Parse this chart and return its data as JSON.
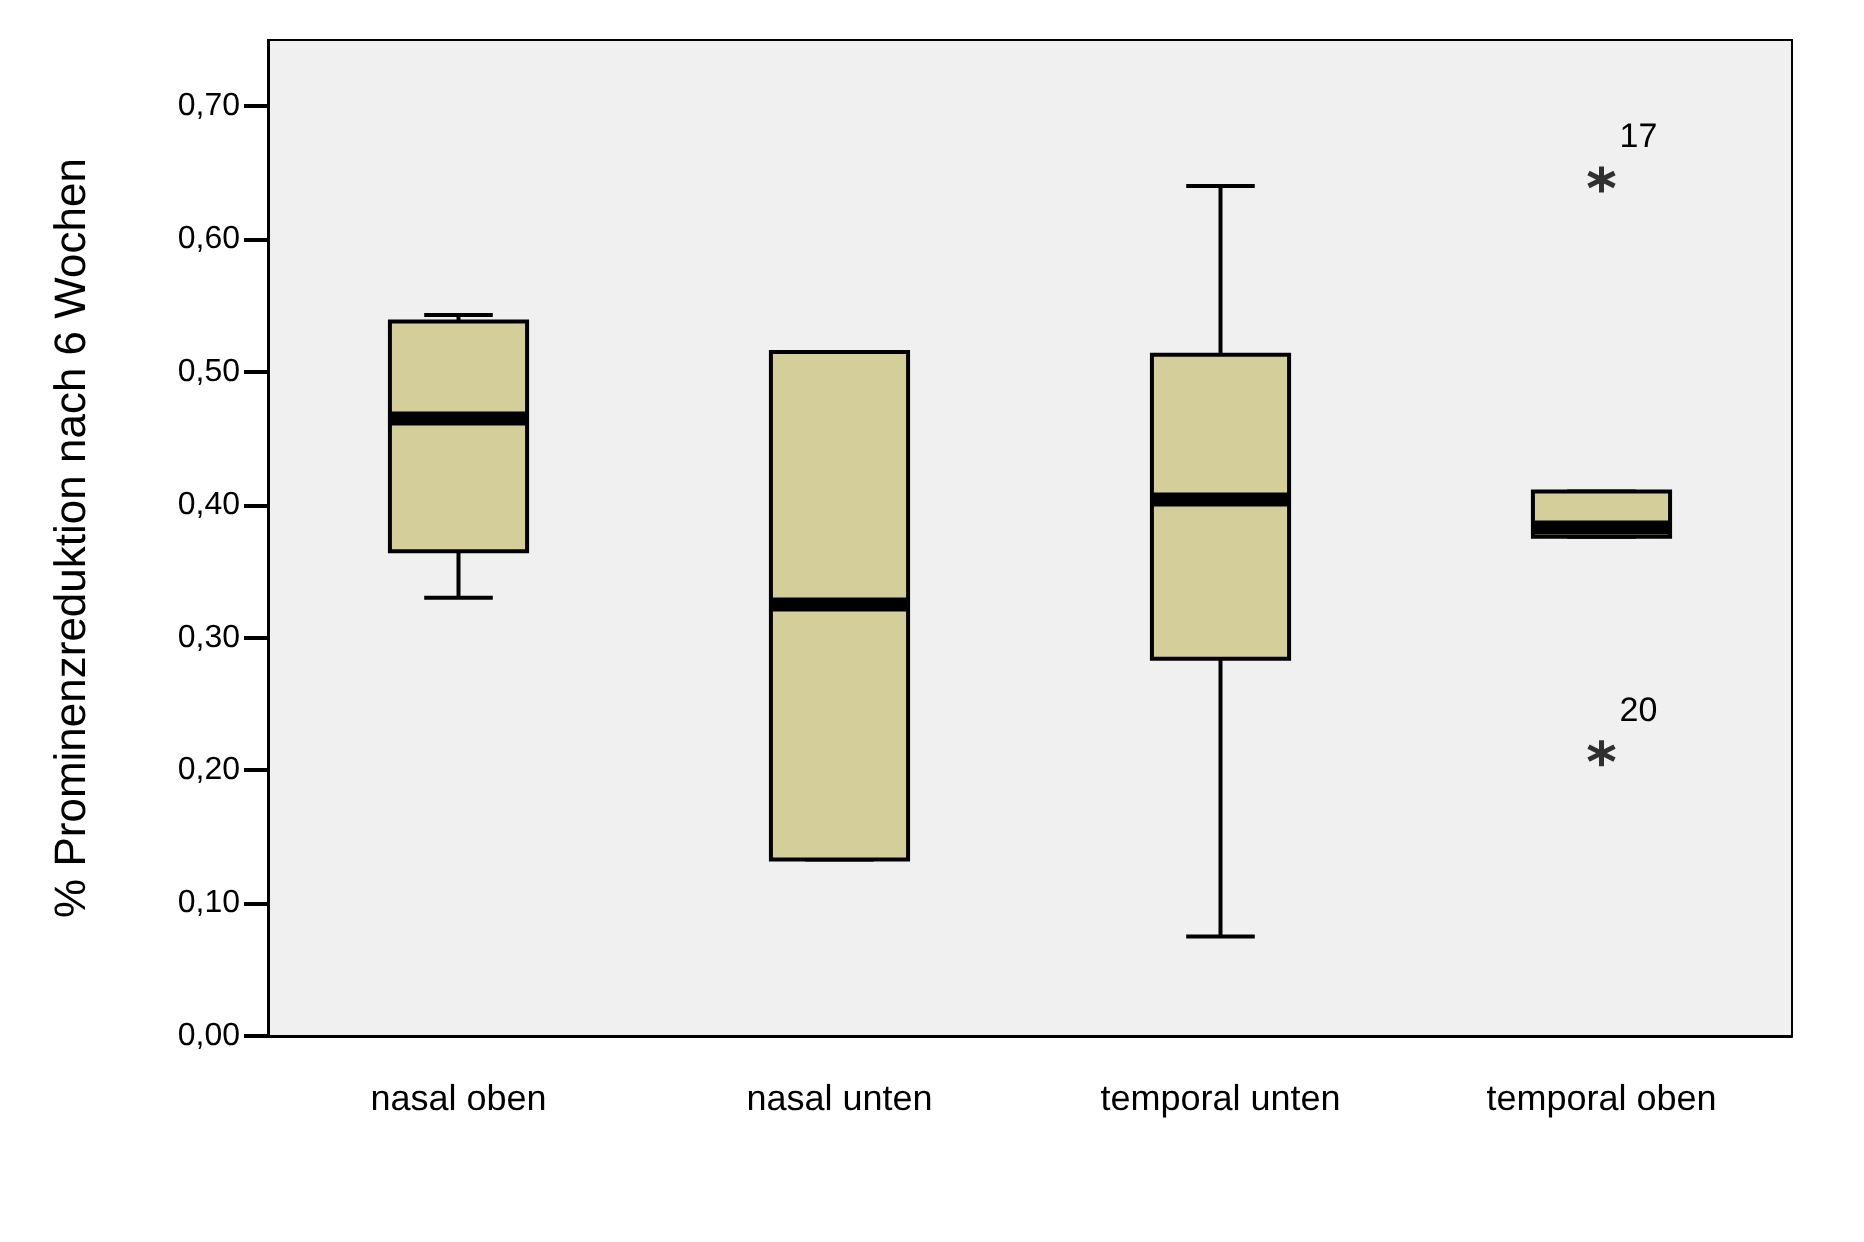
{
  "chart_data": {
    "type": "box",
    "ylabel": "% Prominenzreduktion nach 6 Wochen",
    "categories": [
      "nasal oben",
      "nasal unten",
      "temporal unten",
      "temporal oben"
    ],
    "color": "#d3ce9a",
    "boxes": [
      {
        "low": 0.33,
        "q1": 0.365,
        "median": 0.465,
        "q3": 0.538,
        "high": 0.543
      },
      {
        "low": 0.133,
        "q1": 0.133,
        "median": 0.325,
        "q3": 0.515,
        "high": 0.515
      },
      {
        "low": 0.075,
        "q1": 0.284,
        "median": 0.404,
        "q3": 0.513,
        "high": 0.64
      },
      {
        "low": 0.376,
        "q1": 0.376,
        "median": 0.383,
        "q3": 0.41,
        "high": 0.41,
        "outliers": [
          0.645,
          0.213
        ]
      }
    ],
    "ylim": [
      0,
      0.75
    ],
    "yticks": [
      {
        "value": 0,
        "label": "0,00"
      },
      {
        "value": 0.1,
        "label": "0,10"
      },
      {
        "value": 0.2,
        "label": "0,20"
      },
      {
        "value": 0.3,
        "label": "0,30"
      },
      {
        "value": 0.4,
        "label": "0,40"
      },
      {
        "value": 0.5,
        "label": "0,50"
      },
      {
        "value": 0.6,
        "label": "0,60"
      },
      {
        "value": 0.7,
        "label": "0,70"
      }
    ],
    "marker": "cross",
    "grid": false,
    "annotations": [
      "17",
      "20"
    ]
  }
}
